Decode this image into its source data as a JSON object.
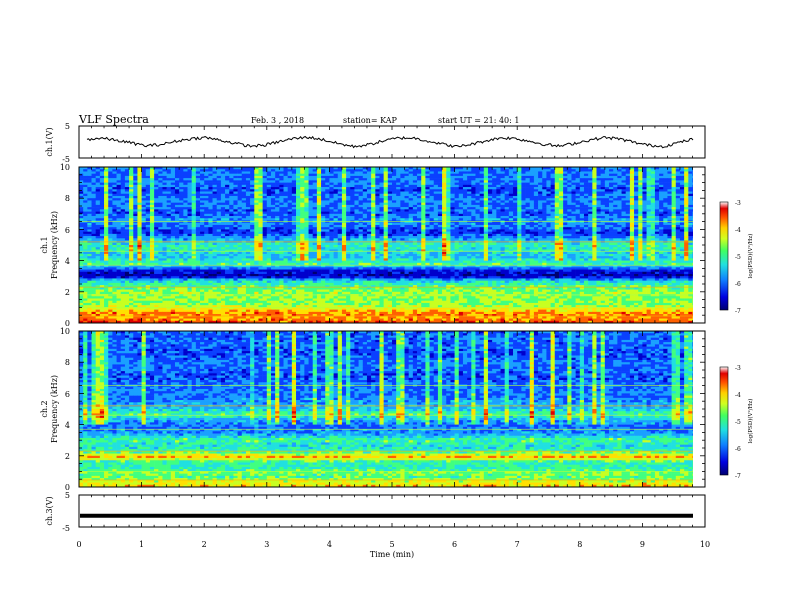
{
  "header": {
    "title": "VLF Spectra",
    "date": "Feb. 3 , 2018",
    "station": "station= KAP",
    "start": "start UT = 21: 40: 1"
  },
  "colors": {
    "spectrogram_palette": [
      "#000070",
      "#0000cc",
      "#0a40ff",
      "#1aa0ff",
      "#20e0e0",
      "#40ff80",
      "#c8ff20",
      "#ffe000",
      "#ff6000",
      "#e00000",
      "#ffffff"
    ],
    "waveform": "#000000",
    "axes": "#000000"
  },
  "chart_data": [
    {
      "type": "line",
      "panel": "ch1-waveform",
      "ylabel": "ch.1(V)",
      "ylim": [
        -5,
        5
      ],
      "yticks": [
        "5",
        "-5"
      ],
      "xlim": [
        0,
        10
      ],
      "series": [
        {
          "description_values_note": "",
          "values": [
            0.8,
            1.2,
            0.5,
            -0.3,
            -1.2,
            -0.8,
            0.2,
            1.0,
            1.4,
            0.6,
            -0.4,
            -1.3,
            -1.0,
            0.1,
            1.1,
            1.5,
            0.7,
            -0.5,
            -1.4,
            -0.9,
            0.3,
            1.2,
            1.3,
            0.4,
            -0.6,
            -1.5,
            -0.7,
            0.4,
            1.3,
            1.1,
            0.2,
            -0.8,
            -1.3,
            -0.4,
            0.6,
            1.4,
            1.0,
            -0.1,
            -1.0,
            -1.4,
            -0.2,
            0.9
          ]
        }
      ]
    },
    {
      "type": "heatmap",
      "panel": "ch1-spectrogram",
      "ylabel_top": "ch.1",
      "ylabel": "Frequency (kHz)",
      "ylim": [
        0,
        10
      ],
      "yticks": [
        "0",
        "2",
        "4",
        "6",
        "8",
        "10"
      ],
      "xlim": [
        0,
        10
      ],
      "colorbar": {
        "label": "log(PSD)(V²/Hz)",
        "range": [
          -7,
          -3
        ],
        "ticks": [
          "-3",
          "-4",
          "-5",
          "-6",
          "-7"
        ]
      },
      "band_levels": [
        [
          0.0,
          0.9
        ],
        [
          0.3,
          0.8
        ],
        [
          0.6,
          0.85
        ],
        [
          0.9,
          0.7
        ],
        [
          1.2,
          0.6
        ],
        [
          1.6,
          0.6
        ],
        [
          2.0,
          0.62
        ],
        [
          2.3,
          0.55
        ],
        [
          2.7,
          0.45
        ],
        [
          3.0,
          0.1
        ],
        [
          3.4,
          0.2
        ],
        [
          3.8,
          0.55
        ],
        [
          4.2,
          0.4
        ],
        [
          4.6,
          0.45
        ],
        [
          5.0,
          0.5
        ],
        [
          5.4,
          0.35
        ],
        [
          5.8,
          0.2
        ],
        [
          6.2,
          0.3
        ],
        [
          6.6,
          0.35
        ],
        [
          7.0,
          0.25
        ],
        [
          7.5,
          0.3
        ],
        [
          8.0,
          0.3
        ],
        [
          8.5,
          0.25
        ],
        [
          9.0,
          0.3
        ],
        [
          9.5,
          0.3
        ],
        [
          10.0,
          0.3
        ]
      ]
    },
    {
      "type": "heatmap",
      "panel": "ch2-spectrogram",
      "ylabel_top": "ch.2",
      "ylabel": "Frequency (kHz)",
      "ylim": [
        0,
        10
      ],
      "yticks": [
        "0",
        "2",
        "4",
        "6",
        "8",
        "10"
      ],
      "xlim": [
        0,
        10
      ],
      "colorbar": {
        "label": "log(PSD)(V²/Hz)",
        "range": [
          -7,
          -3
        ],
        "ticks": [
          "-3",
          "-4",
          "-5",
          "-6",
          "-7"
        ]
      },
      "band_levels": [
        [
          0.0,
          0.75
        ],
        [
          0.3,
          0.7
        ],
        [
          0.6,
          0.55
        ],
        [
          0.9,
          0.6
        ],
        [
          1.2,
          0.5
        ],
        [
          1.6,
          0.5
        ],
        [
          1.9,
          0.8
        ],
        [
          2.3,
          0.5
        ],
        [
          2.7,
          0.45
        ],
        [
          3.0,
          0.55
        ],
        [
          3.4,
          0.35
        ],
        [
          3.8,
          0.3
        ],
        [
          4.2,
          0.35
        ],
        [
          4.7,
          0.55
        ],
        [
          5.0,
          0.4
        ],
        [
          5.4,
          0.35
        ],
        [
          5.8,
          0.3
        ],
        [
          6.2,
          0.3
        ],
        [
          6.6,
          0.3
        ],
        [
          7.0,
          0.25
        ],
        [
          7.5,
          0.28
        ],
        [
          8.0,
          0.3
        ],
        [
          8.5,
          0.25
        ],
        [
          9.0,
          0.28
        ],
        [
          9.5,
          0.28
        ],
        [
          10.0,
          0.28
        ]
      ]
    },
    {
      "type": "line",
      "panel": "ch3-waveform",
      "ylabel": "ch.3(V)",
      "ylim": [
        -5,
        5
      ],
      "yticks": [
        "5",
        "-5"
      ],
      "xlim": [
        0,
        10
      ],
      "series": [
        {
          "values": [
            -1.5,
            -1.5
          ]
        }
      ]
    }
  ],
  "xaxis": {
    "label": "Time (min)",
    "ticks": [
      "0",
      "1",
      "2",
      "3",
      "4",
      "5",
      "6",
      "7",
      "8",
      "9",
      "10"
    ]
  }
}
